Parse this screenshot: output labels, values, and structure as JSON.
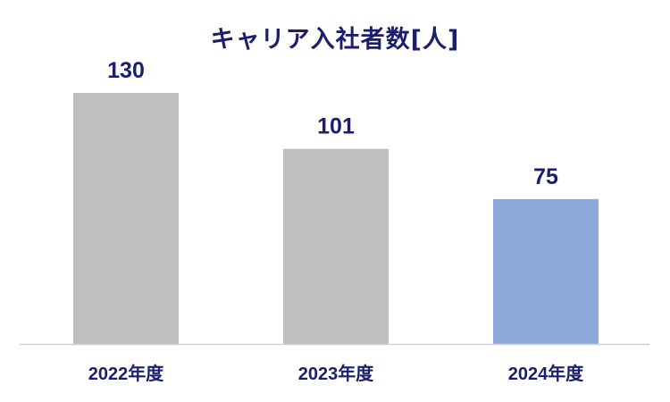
{
  "chart_data": {
    "type": "bar",
    "title": "キャリア入社者数[人]",
    "categories": [
      "2022年度",
      "2023年度",
      "2024年度"
    ],
    "values": [
      130,
      101,
      75
    ],
    "ylim": [
      0,
      140
    ],
    "grid": false,
    "legend": "none",
    "data_labels": [
      "130",
      "101",
      "75"
    ],
    "colors": {
      "default_bar": "#bfbfbf",
      "highlight_bar": "#8eaadb",
      "label_text": "#1b1f6b",
      "axis_line": "#d0d0d0"
    },
    "highlight_index": 2
  }
}
